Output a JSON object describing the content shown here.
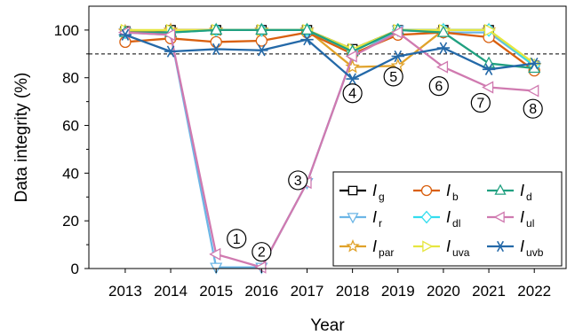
{
  "chart_data": {
    "type": "line",
    "xlabel": "Year",
    "ylabel": "Data integrity (%)",
    "x": [
      2013,
      2014,
      2015,
      2016,
      2017,
      2018,
      2019,
      2020,
      2021,
      2022
    ],
    "xlim": [
      2012.2,
      2022.7
    ],
    "ylim": [
      0,
      110
    ],
    "yticks": [
      0,
      20,
      40,
      60,
      80,
      100
    ],
    "reference_line": {
      "y": 90,
      "style": "dashed"
    },
    "grid": false,
    "legend_position": "bottom-right",
    "series": [
      {
        "name": "I",
        "sub": "g",
        "color": "#000000",
        "marker": "square",
        "values": [
          99.5,
          100,
          100,
          100,
          100,
          92,
          100,
          100,
          100,
          85
        ]
      },
      {
        "name": "I",
        "sub": "r",
        "color": "#6cb6e6",
        "marker": "triangle-down",
        "values": [
          99,
          98,
          0.5,
          0.5,
          36,
          89,
          100,
          99,
          99,
          85
        ]
      },
      {
        "name": "I",
        "sub": "par",
        "color": "#e0a22a",
        "marker": "star",
        "values": [
          99.5,
          100,
          100,
          100,
          100,
          84.5,
          85,
          100,
          100,
          85
        ]
      },
      {
        "name": "I",
        "sub": "b",
        "color": "#d95f0e",
        "marker": "circle",
        "values": [
          95,
          96.5,
          95,
          95.5,
          99,
          90,
          98,
          99,
          97,
          83
        ]
      },
      {
        "name": "I",
        "sub": "dl",
        "color": "#33ddee",
        "marker": "diamond",
        "values": [
          99,
          99,
          100,
          100,
          100,
          91,
          100,
          100,
          100,
          85
        ]
      },
      {
        "name": "I",
        "sub": "uva",
        "color": "#e6e640",
        "marker": "triangle-right",
        "values": [
          100,
          100,
          100,
          100,
          100,
          92,
          100,
          100,
          100,
          86
        ]
      },
      {
        "name": "I",
        "sub": "d",
        "color": "#20a080",
        "marker": "triangle-up",
        "values": [
          99,
          99,
          100,
          100,
          100,
          91,
          100,
          99,
          86,
          84
        ]
      },
      {
        "name": "I",
        "sub": "ul",
        "color": "#d07ab0",
        "marker": "triangle-left",
        "values": [
          99,
          98,
          6,
          0.5,
          36,
          89,
          99,
          84.5,
          76,
          74.5
        ]
      },
      {
        "name": "I",
        "sub": "uvb",
        "color": "#2469a8",
        "marker": "asterisk",
        "values": [
          98,
          91,
          92,
          91.5,
          96,
          79.5,
          89,
          92.5,
          83.5,
          86
        ]
      }
    ],
    "annotations": [
      {
        "label": "1",
        "x": 2015.45,
        "y": 12.5
      },
      {
        "label": "2",
        "x": 2016.0,
        "y": 7
      },
      {
        "label": "3",
        "x": 2016.8,
        "y": 37
      },
      {
        "label": "4",
        "x": 2018.0,
        "y": 73.5
      },
      {
        "label": "5",
        "x": 2018.9,
        "y": 80.5
      },
      {
        "label": "6",
        "x": 2019.9,
        "y": 76.5
      },
      {
        "label": "7",
        "x": 2020.82,
        "y": 69.5
      },
      {
        "label": "8",
        "x": 2021.97,
        "y": 67
      }
    ]
  }
}
